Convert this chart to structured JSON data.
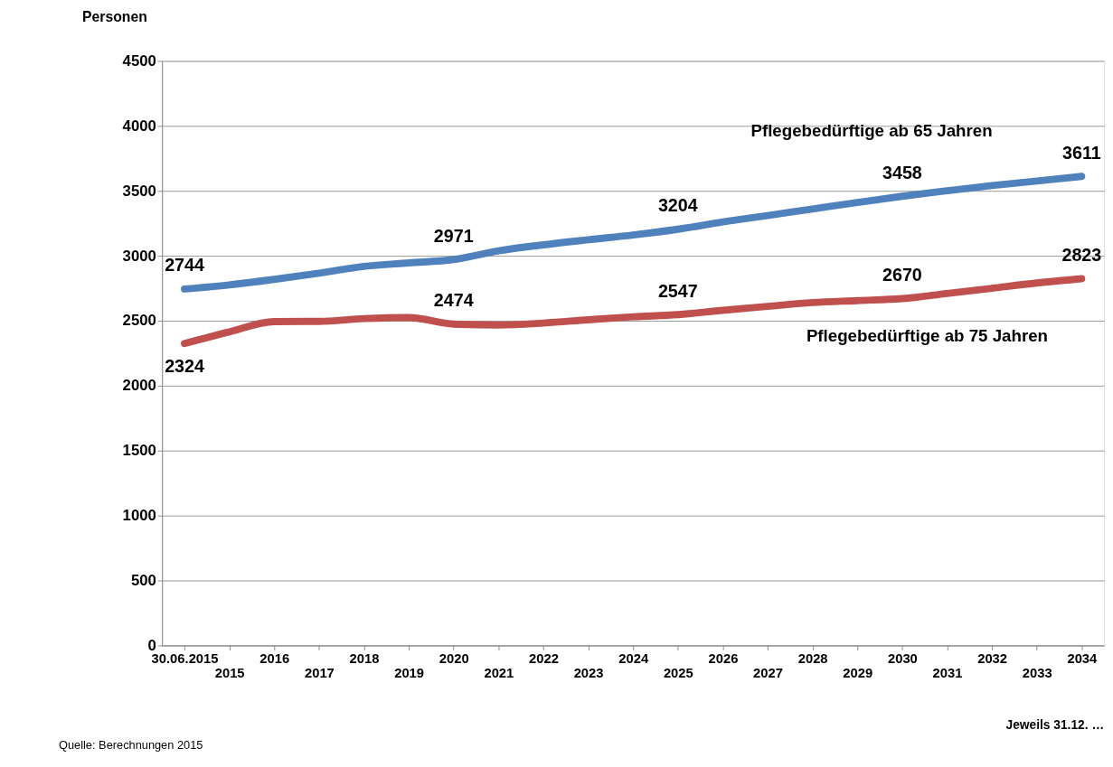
{
  "chart_data": {
    "type": "line",
    "ylabel": "Personen",
    "categories": [
      "30.06.2015",
      "2015",
      "2016",
      "2017",
      "2018",
      "2019",
      "2020",
      "2021",
      "2022",
      "2023",
      "2024",
      "2025",
      "2026",
      "2027",
      "2028",
      "2029",
      "2030",
      "2031",
      "2032",
      "2033",
      "2034"
    ],
    "series": [
      {
        "name": "Pflegebedürftige ab 65 Jahren",
        "color": "#4f81bd",
        "values": [
          2744,
          2776,
          2818,
          2866,
          2918,
          2945,
          2971,
          3038,
          3084,
          3123,
          3160,
          3204,
          3260,
          3310,
          3360,
          3410,
          3458,
          3500,
          3540,
          3575,
          3611
        ],
        "value_labels": [
          "2744",
          null,
          null,
          null,
          null,
          null,
          "2971",
          null,
          null,
          null,
          null,
          "3204",
          null,
          null,
          null,
          null,
          "3458",
          null,
          null,
          null,
          "3611"
        ]
      },
      {
        "name": "Pflegebedürftige ab 75 Jahren",
        "color": "#c0504d",
        "values": [
          2324,
          2414,
          2493,
          2495,
          2516,
          2524,
          2474,
          2467,
          2482,
          2507,
          2530,
          2547,
          2580,
          2610,
          2640,
          2655,
          2670,
          2710,
          2750,
          2790,
          2823
        ],
        "value_labels": [
          "2324",
          null,
          null,
          null,
          null,
          null,
          "2474",
          null,
          null,
          null,
          null,
          "2547",
          null,
          null,
          null,
          null,
          "2670",
          null,
          null,
          null,
          "2823"
        ]
      }
    ],
    "ylim": [
      0,
      4500
    ],
    "yticks": [
      0,
      500,
      1000,
      1500,
      2000,
      2500,
      3000,
      3500,
      4000,
      4500
    ],
    "grid": "y",
    "legend": false,
    "marker": "none",
    "line_style": "solid",
    "annotations": [
      "Jeweils 31.12. …",
      "Quelle: Berechnungen 2015"
    ]
  }
}
